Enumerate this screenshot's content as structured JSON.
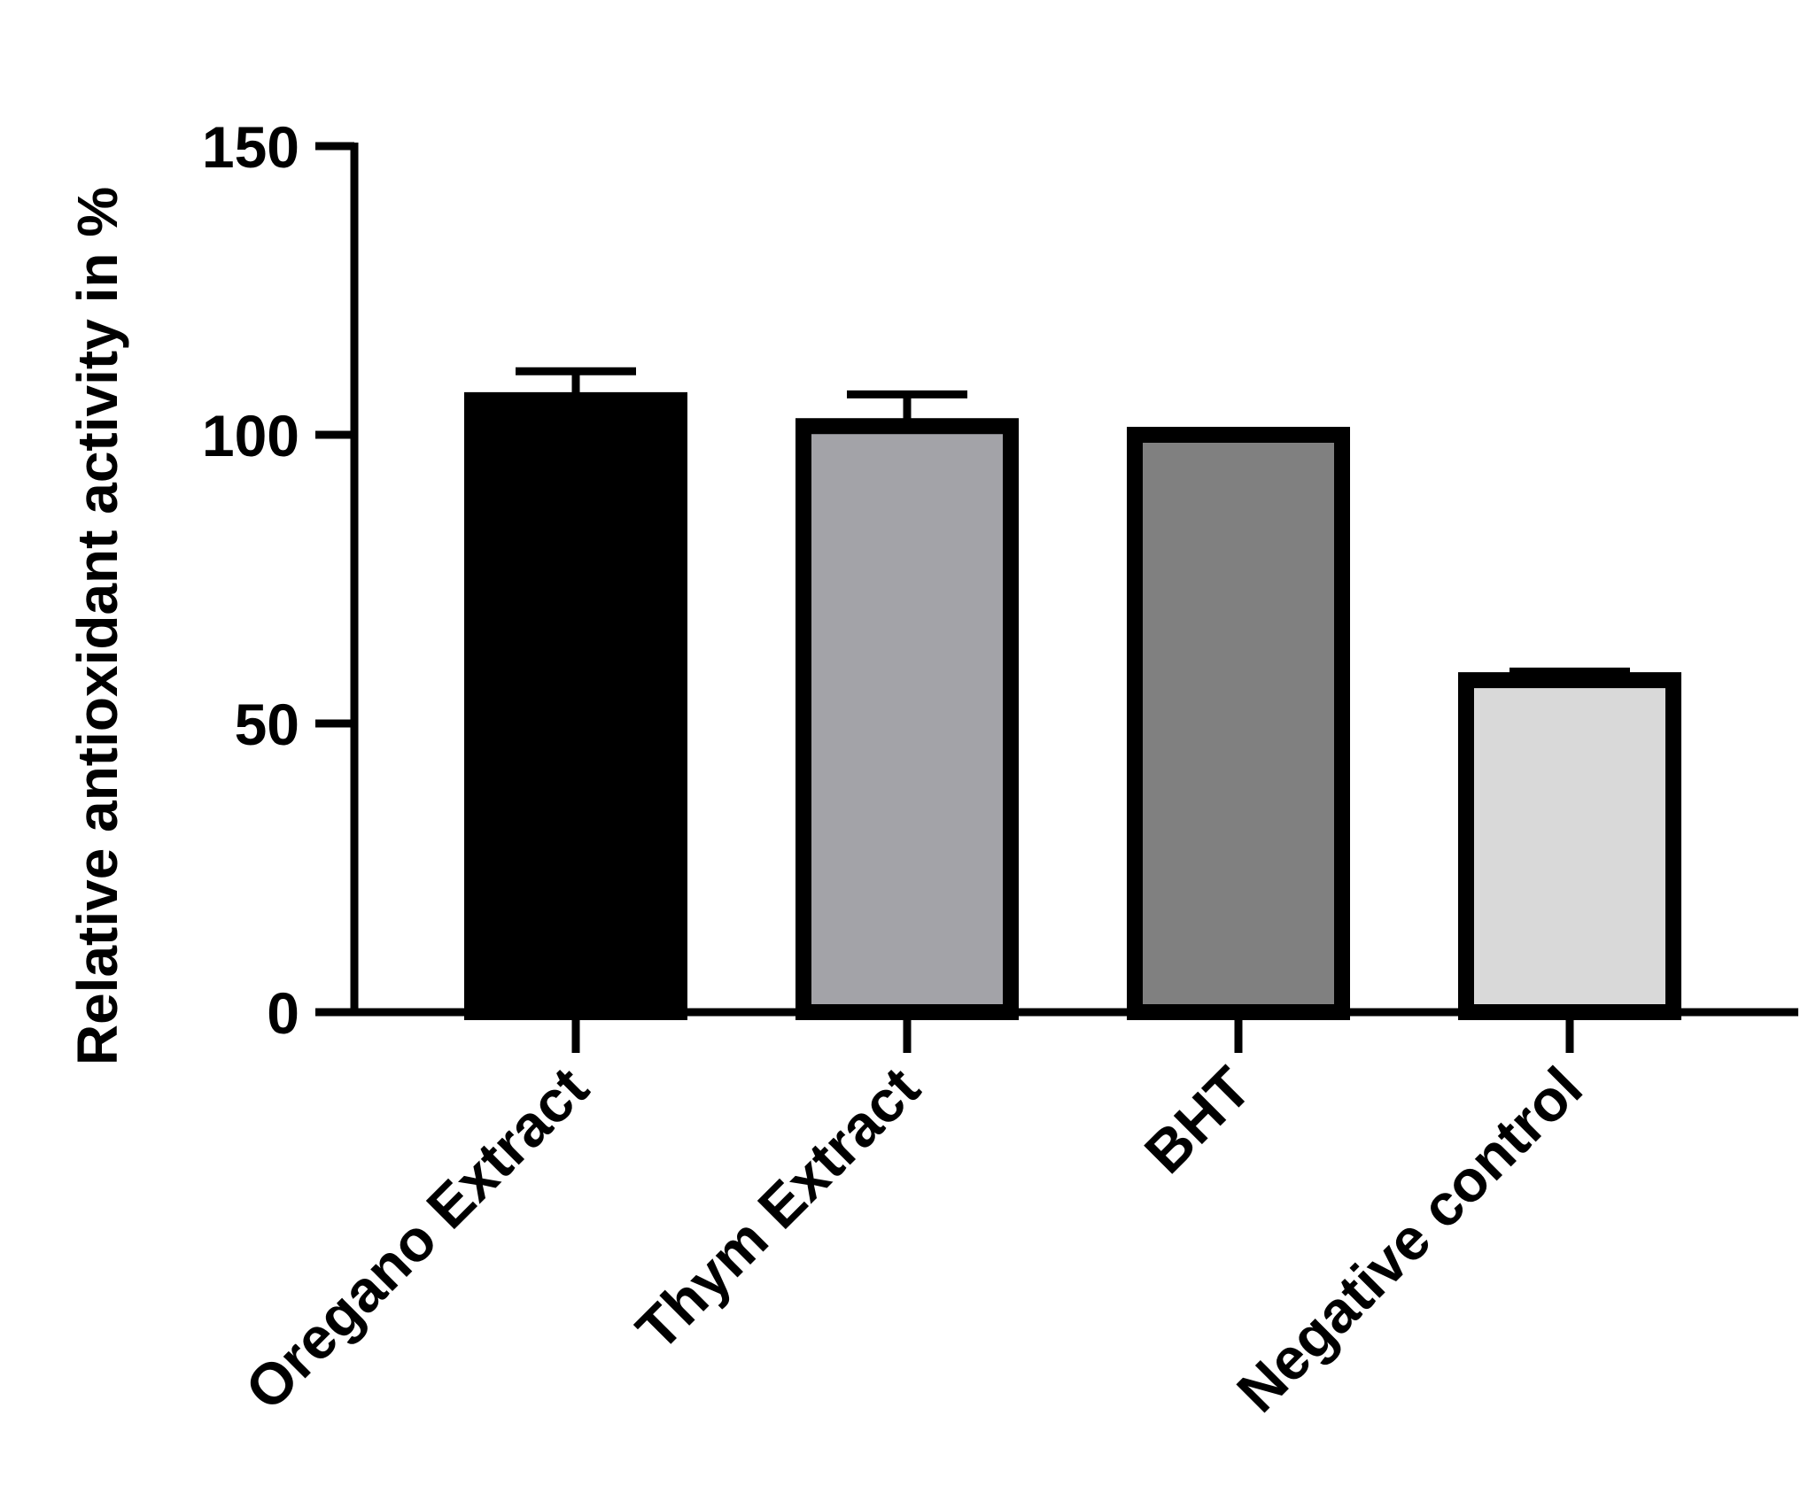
{
  "chart_data": {
    "type": "bar",
    "title": "",
    "xlabel": "",
    "ylabel": "Relative antioxidant activity in %",
    "ylim": [
      0,
      150
    ],
    "yticks": [
      0,
      50,
      100,
      150
    ],
    "categories": [
      "Oregano Extract",
      "Thym Extract",
      "BHT",
      "Negative control"
    ],
    "values": [
      106,
      101.5,
      100,
      57.5
    ],
    "errors": [
      5,
      5.5,
      0,
      1.5
    ],
    "bar_colors": [
      "#000000",
      "#a3a3a8",
      "#808080",
      "#d9d9d9"
    ],
    "bar_edge_color": "#000000",
    "grid": false,
    "legend": "none"
  }
}
